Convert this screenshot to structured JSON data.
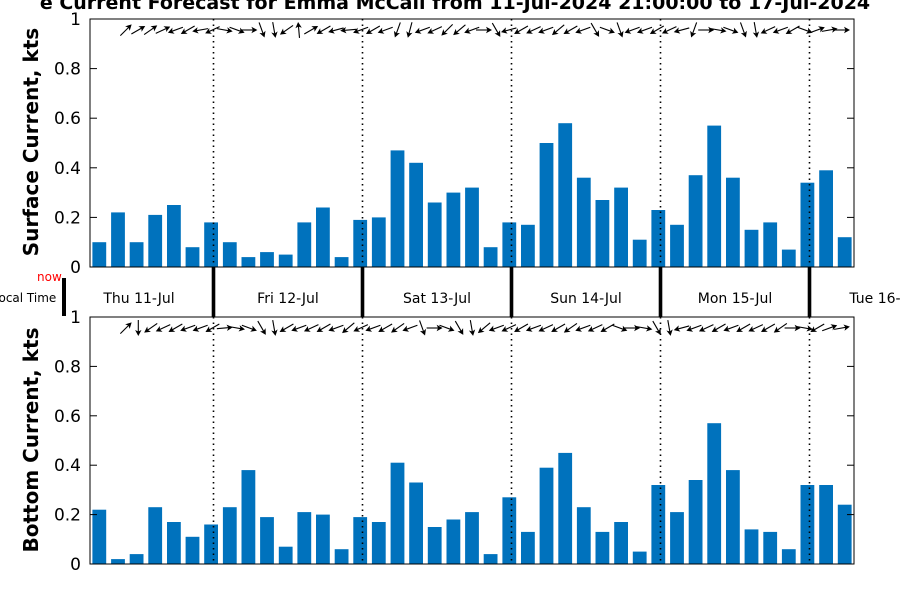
{
  "title": "e Current Forecast for Emma McCall from 11-Jul-2024 21:00:00 to 17-Jul-2024",
  "bar_color": "#0072bd",
  "now_color": "#ff0000",
  "timeline": {
    "local_time_label": "Local Time",
    "now_label": "now",
    "days": [
      "Thu 11-Jul",
      "Fri 12-Jul",
      "Sat 13-Jul",
      "Sun 14-Jul",
      "Mon 15-Jul",
      "Tue 16-"
    ]
  },
  "chart_data": [
    {
      "type": "bar",
      "ylabel": "Surface Current, kts",
      "ylim": [
        0,
        1
      ],
      "yticks": [
        "0",
        "0.2",
        "0.4",
        "0.6",
        "0.8",
        "1"
      ],
      "grid": false,
      "values": [
        0.1,
        0.22,
        0.1,
        0.21,
        0.25,
        0.08,
        0.18,
        0.1,
        0.04,
        0.06,
        0.05,
        0.18,
        0.24,
        0.04,
        0.19,
        0.2,
        0.47,
        0.42,
        0.26,
        0.3,
        0.32,
        0.08,
        0.18,
        0.17,
        0.5,
        0.58,
        0.36,
        0.27,
        0.32,
        0.11,
        0.23,
        0.17,
        0.37,
        0.57,
        0.36,
        0.15,
        0.18,
        0.07,
        0.34,
        0.39,
        0.12
      ],
      "direction_arrows_deg": [
        45,
        60,
        55,
        65,
        250,
        240,
        260,
        245,
        100,
        110,
        90,
        160,
        170,
        235,
        355,
        60,
        240,
        255,
        265,
        250,
        240,
        250,
        200,
        195,
        250,
        245,
        225,
        230,
        250,
        90,
        150,
        255,
        240,
        245,
        250,
        230,
        240,
        250,
        150,
        110,
        160,
        250,
        250,
        240,
        245,
        255,
        200,
        90,
        100,
        110,
        160,
        170,
        245,
        250,
        240,
        110,
        70,
        80,
        90
      ]
    },
    {
      "type": "bar",
      "ylabel": "Bottom Current, kts",
      "ylim": [
        0,
        1
      ],
      "yticks": [
        "0",
        "0.2",
        "0.4",
        "0.6",
        "0.8",
        "1"
      ],
      "grid": false,
      "values": [
        0.22,
        0.02,
        0.04,
        0.23,
        0.17,
        0.11,
        0.16,
        0.23,
        0.38,
        0.19,
        0.07,
        0.21,
        0.2,
        0.06,
        0.19,
        0.17,
        0.41,
        0.33,
        0.15,
        0.18,
        0.21,
        0.04,
        0.27,
        0.13,
        0.39,
        0.45,
        0.23,
        0.13,
        0.17,
        0.05,
        0.32,
        0.21,
        0.34,
        0.57,
        0.38,
        0.14,
        0.13,
        0.06,
        0.32,
        0.32,
        0.24
      ],
      "direction_arrows_deg": [
        45,
        180,
        235,
        245,
        240,
        250,
        250,
        240,
        85,
        100,
        110,
        150,
        170,
        240,
        250,
        245,
        240,
        250,
        230,
        245,
        250,
        240,
        235,
        250,
        160,
        90,
        110,
        150,
        170,
        230,
        250,
        245,
        240,
        250,
        245,
        240,
        235,
        250,
        245,
        240,
        110,
        90,
        100,
        150,
        170,
        255,
        250,
        245,
        240,
        250,
        240,
        245,
        240,
        235,
        90,
        100,
        240,
        70,
        80
      ]
    }
  ]
}
